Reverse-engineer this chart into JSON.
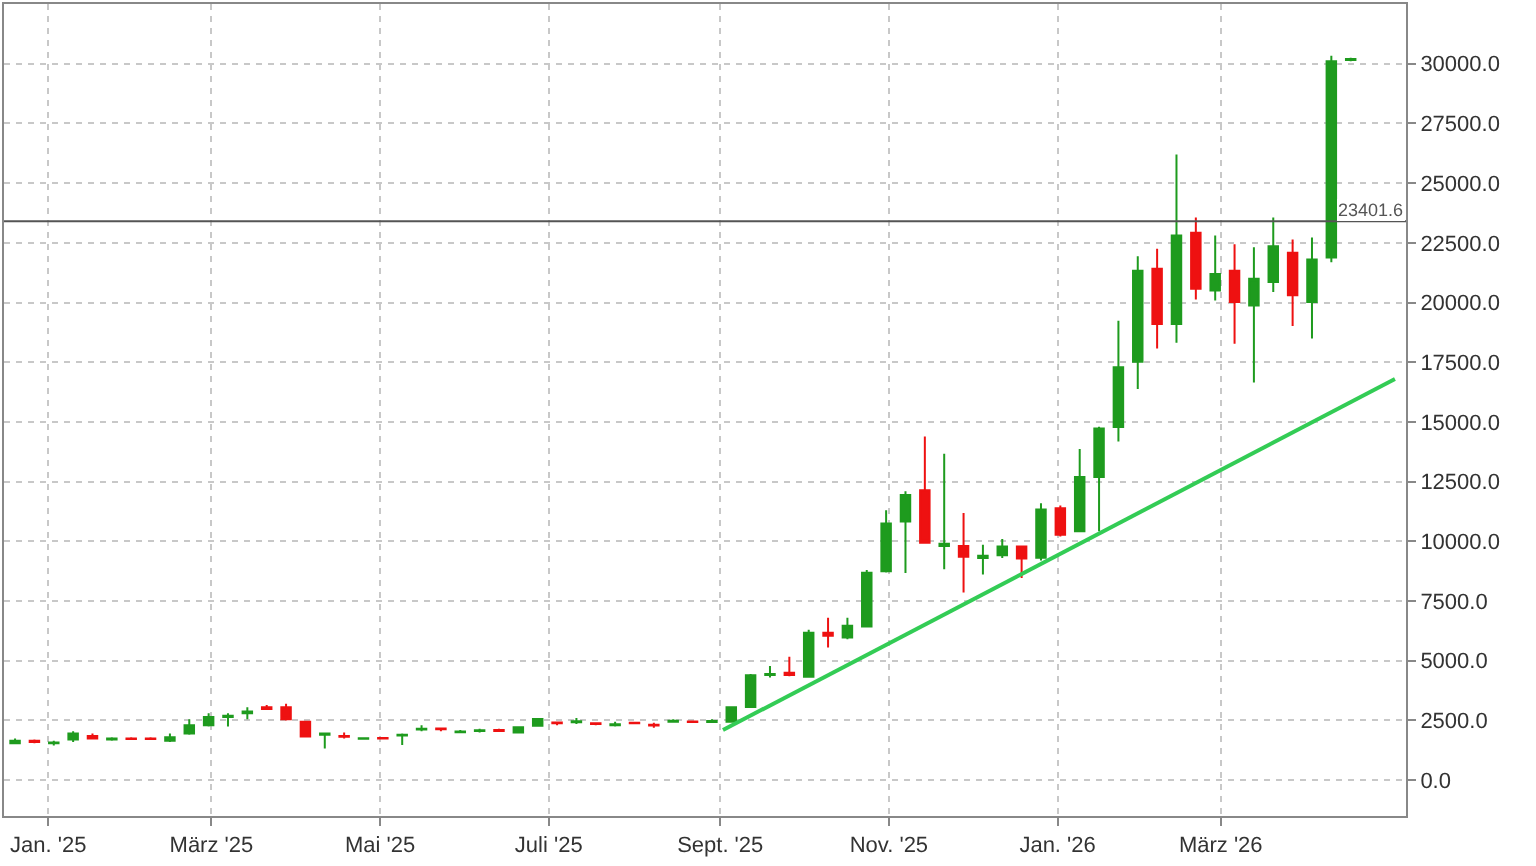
{
  "chart_data": {
    "type": "candlestick",
    "x": [
      "2024-12-20",
      "2024-12-27",
      "2025-01-03",
      "2025-01-10",
      "2025-01-17",
      "2025-01-24",
      "2025-01-31",
      "2025-02-07",
      "2025-02-14",
      "2025-02-21",
      "2025-02-28",
      "2025-03-07",
      "2025-03-14",
      "2025-03-21",
      "2025-03-28",
      "2025-04-04",
      "2025-04-11",
      "2025-04-18",
      "2025-04-25",
      "2025-05-02",
      "2025-05-09",
      "2025-05-16",
      "2025-05-23",
      "2025-05-30",
      "2025-06-06",
      "2025-06-13",
      "2025-06-20",
      "2025-06-27",
      "2025-07-04",
      "2025-07-11",
      "2025-07-18",
      "2025-07-25",
      "2025-08-01",
      "2025-08-08",
      "2025-08-15",
      "2025-08-22",
      "2025-08-29",
      "2025-09-05",
      "2025-09-12",
      "2025-09-19",
      "2025-09-26",
      "2025-10-03",
      "2025-10-10",
      "2025-10-17",
      "2025-10-24",
      "2025-10-31",
      "2025-11-07",
      "2025-11-14",
      "2025-11-21",
      "2025-11-28",
      "2025-12-05",
      "2025-12-12",
      "2025-12-19",
      "2025-12-26",
      "2026-01-02",
      "2026-01-09",
      "2026-01-16",
      "2026-01-23",
      "2026-01-30",
      "2026-02-06",
      "2026-02-13",
      "2026-02-20",
      "2026-02-27",
      "2026-03-06",
      "2026-03-13",
      "2026-03-20",
      "2026-03-27",
      "2026-04-03",
      "2026-04-10",
      "2026-04-17"
    ],
    "ohlc": [
      [
        1550,
        1750,
        1500,
        1650
      ],
      [
        1650,
        1700,
        1550,
        1600
      ],
      [
        1550,
        1650,
        1450,
        1580
      ],
      [
        1700,
        2050,
        1600,
        1950
      ],
      [
        1850,
        1950,
        1700,
        1750
      ],
      [
        1700,
        1800,
        1650,
        1750
      ],
      [
        1750,
        1800,
        1700,
        1720
      ],
      [
        1750,
        1800,
        1700,
        1720
      ],
      [
        1650,
        1950,
        1600,
        1800
      ],
      [
        1950,
        2550,
        1900,
        2300
      ],
      [
        2300,
        2800,
        2250,
        2650
      ],
      [
        2650,
        2800,
        2250,
        2700
      ],
      [
        2800,
        3050,
        2550,
        2880
      ],
      [
        3050,
        3150,
        2950,
        2980
      ],
      [
        3050,
        3200,
        2500,
        2550
      ],
      [
        2450,
        2450,
        1800,
        1830
      ],
      [
        1900,
        2000,
        1330,
        1950
      ],
      [
        1850,
        2000,
        1750,
        1820
      ],
      [
        1730,
        1800,
        1700,
        1760
      ],
      [
        1770,
        1800,
        1700,
        1740
      ],
      [
        1870,
        1950,
        1470,
        1900
      ],
      [
        2120,
        2300,
        2050,
        2150
      ],
      [
        2160,
        2200,
        2050,
        2130
      ],
      [
        2010,
        2100,
        1980,
        2040
      ],
      [
        2060,
        2150,
        2000,
        2090
      ],
      [
        2100,
        2150,
        2050,
        2060
      ],
      [
        2000,
        2250,
        1980,
        2220
      ],
      [
        2280,
        2600,
        2250,
        2560
      ],
      [
        2420,
        2450,
        2300,
        2380
      ],
      [
        2430,
        2600,
        2350,
        2470
      ],
      [
        2380,
        2420,
        2300,
        2350
      ],
      [
        2300,
        2450,
        2250,
        2340
      ],
      [
        2400,
        2450,
        2350,
        2380
      ],
      [
        2320,
        2400,
        2200,
        2290
      ],
      [
        2450,
        2550,
        2400,
        2490
      ],
      [
        2460,
        2500,
        2400,
        2440
      ],
      [
        2440,
        2550,
        2400,
        2480
      ],
      [
        2450,
        3100,
        2400,
        3050
      ],
      [
        3060,
        4450,
        3050,
        4390
      ],
      [
        4400,
        4780,
        4300,
        4450
      ],
      [
        4500,
        5170,
        4350,
        4400
      ],
      [
        4330,
        6300,
        4300,
        6170
      ],
      [
        6170,
        6800,
        5560,
        6050
      ],
      [
        5970,
        6800,
        5900,
        6470
      ],
      [
        6440,
        8800,
        6400,
        8690
      ],
      [
        8750,
        11300,
        8700,
        10750
      ],
      [
        10830,
        12100,
        8670,
        11940
      ],
      [
        12140,
        14390,
        9940,
        9940
      ],
      [
        9800,
        13670,
        8830,
        9900
      ],
      [
        9810,
        11190,
        7860,
        9360
      ],
      [
        9300,
        9860,
        8610,
        9400
      ],
      [
        9420,
        10100,
        9300,
        9780
      ],
      [
        9780,
        9800,
        8470,
        9280
      ],
      [
        9310,
        11600,
        9200,
        11330
      ],
      [
        11390,
        11500,
        10200,
        10280
      ],
      [
        10420,
        13870,
        10400,
        12700
      ],
      [
        12700,
        14800,
        10420,
        14730
      ],
      [
        14790,
        19240,
        14180,
        17290
      ],
      [
        17520,
        21940,
        16380,
        21330
      ],
      [
        21410,
        22250,
        18070,
        19100
      ],
      [
        19100,
        26200,
        18320,
        22810
      ],
      [
        22920,
        23560,
        20130,
        20580
      ],
      [
        20500,
        22810,
        20080,
        21190
      ],
      [
        21330,
        22440,
        18270,
        20020
      ],
      [
        19880,
        22310,
        16650,
        21000
      ],
      [
        20860,
        23560,
        20440,
        22360
      ],
      [
        22080,
        22640,
        19020,
        20300
      ],
      [
        20020,
        22720,
        18490,
        21800
      ],
      [
        21890,
        30330,
        21690,
        30100
      ],
      [
        30150,
        30250,
        30100,
        30200
      ]
    ],
    "colors": [
      "#1e9b1e",
      "#ee1111",
      "#1e9b1e",
      "#1e9b1e",
      "#ee1111",
      "#1e9b1e",
      "#ee1111",
      "#ee1111",
      "#1e9b1e",
      "#1e9b1e",
      "#1e9b1e",
      "#1e9b1e",
      "#1e9b1e",
      "#ee1111",
      "#ee1111",
      "#ee1111",
      "#1e9b1e",
      "#ee1111",
      "#1e9b1e",
      "#ee1111",
      "#1e9b1e",
      "#1e9b1e",
      "#ee1111",
      "#1e9b1e",
      "#1e9b1e",
      "#ee1111",
      "#1e9b1e",
      "#1e9b1e",
      "#ee1111",
      "#1e9b1e",
      "#ee1111",
      "#1e9b1e",
      "#ee1111",
      "#ee1111",
      "#1e9b1e",
      "#ee1111",
      "#1e9b1e",
      "#1e9b1e",
      "#1e9b1e",
      "#1e9b1e",
      "#ee1111",
      "#1e9b1e",
      "#ee1111",
      "#1e9b1e",
      "#1e9b1e",
      "#1e9b1e",
      "#1e9b1e",
      "#ee1111",
      "#1e9b1e",
      "#ee1111",
      "#1e9b1e",
      "#1e9b1e",
      "#ee1111",
      "#1e9b1e",
      "#ee1111",
      "#1e9b1e",
      "#1e9b1e",
      "#1e9b1e",
      "#1e9b1e",
      "#ee1111",
      "#1e9b1e",
      "#ee1111",
      "#1e9b1e",
      "#ee1111",
      "#1e9b1e",
      "#1e9b1e",
      "#ee1111",
      "#1e9b1e",
      "#1e9b1e",
      "#1e9b1e"
    ],
    "series": [
      {
        "type": "line",
        "color": "#33cc55",
        "x": [
          "2025-09-02",
          "2026-05-03"
        ],
        "values": [
          2100,
          16800
        ]
      }
    ],
    "ref_lines": [
      {
        "axis": "y",
        "value": 23401.6,
        "label": "23401.6",
        "color": "#555555"
      }
    ],
    "xlim": [
      "2024-12-16",
      "2026-05-07"
    ],
    "xticks": [
      {
        "value": "2025-01-01",
        "label": "Jan. '25"
      },
      {
        "value": "2025-03-01",
        "label": "März '25"
      },
      {
        "value": "2025-05-01",
        "label": "Mai '25"
      },
      {
        "value": "2025-07-01",
        "label": "Juli '25"
      },
      {
        "value": "2025-09-01",
        "label": "Sept. '25"
      },
      {
        "value": "2025-11-01",
        "label": "Nov. '25"
      },
      {
        "value": "2026-01-01",
        "label": "Jan. '26"
      },
      {
        "value": "2026-03-01",
        "label": "März '26"
      }
    ],
    "ylim": [
      -1500,
      32500
    ],
    "yticks": [
      {
        "value": 0,
        "label": "0.0"
      },
      {
        "value": 2500,
        "label": "2500.0"
      },
      {
        "value": 5000,
        "label": "5000.0"
      },
      {
        "value": 7500,
        "label": "7500.0"
      },
      {
        "value": 10000,
        "label": "10000.0"
      },
      {
        "value": 12500,
        "label": "12500.0"
      },
      {
        "value": 15000,
        "label": "15000.0"
      },
      {
        "value": 17500,
        "label": "17500.0"
      },
      {
        "value": 20000,
        "label": "20000.0"
      },
      {
        "value": 22500,
        "label": "22500.0"
      },
      {
        "value": 25000,
        "label": "25000.0"
      },
      {
        "value": 27500,
        "label": "27500.0"
      },
      {
        "value": 30000,
        "label": "30000.0"
      }
    ],
    "grid": true
  }
}
